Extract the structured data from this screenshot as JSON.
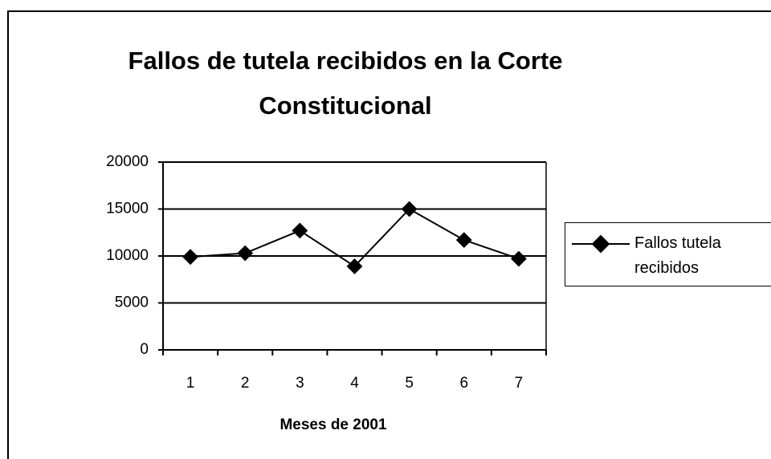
{
  "chart_data": {
    "type": "line",
    "title": "Fallos de tutela recibidos en la Corte Constitucional",
    "x_label": "Meses de 2001",
    "categories": [
      "1",
      "2",
      "3",
      "4",
      "5",
      "6",
      "7"
    ],
    "series": [
      {
        "name": "Fallos tutela recibidos",
        "color": "#000000",
        "values": [
          9900,
          10300,
          12700,
          8900,
          15000,
          11700,
          9700
        ]
      }
    ],
    "ylim": [
      0,
      20000
    ],
    "yticks": [
      0,
      5000,
      10000,
      15000,
      20000
    ],
    "grid": true,
    "legend": "right"
  }
}
